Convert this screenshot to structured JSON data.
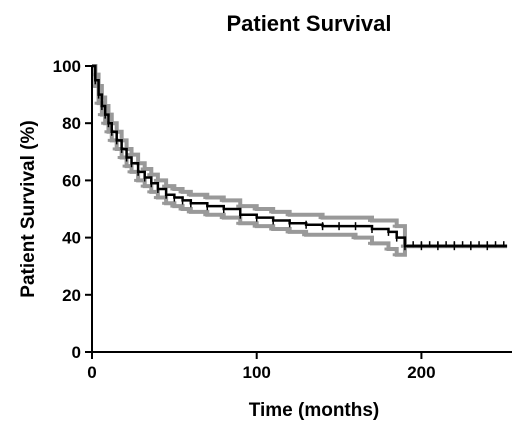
{
  "chart_data": {
    "type": "line",
    "title": "Patient Survival",
    "xlabel": "Time (months)",
    "ylabel": "Patient Survival (%)",
    "xlim": [
      0,
      255
    ],
    "ylim": [
      0,
      100
    ],
    "x_ticks": [
      0,
      100,
      200
    ],
    "y_ticks": [
      0,
      20,
      40,
      60,
      80,
      100
    ],
    "x_tick_labels": [
      "0",
      "100",
      "200"
    ],
    "y_tick_labels": [
      "0",
      "20",
      "40",
      "60",
      "80",
      "100"
    ],
    "grid": false,
    "legend": "none",
    "colors": {
      "curve": "#000000",
      "ci": "#999999"
    },
    "series": [
      {
        "style": "step",
        "x": [
          0,
          2,
          4,
          6,
          8,
          10,
          12,
          15,
          18,
          21,
          24,
          28,
          32,
          36,
          40,
          45,
          50,
          55,
          60,
          70,
          80,
          90,
          100,
          110,
          120,
          130,
          140,
          150,
          160,
          170,
          180,
          185,
          190,
          200,
          210,
          220,
          230,
          240,
          252
        ],
        "y": [
          100,
          95,
          90,
          86,
          83,
          80,
          77,
          74,
          71,
          68,
          66,
          63,
          61,
          59,
          57,
          55,
          54,
          53,
          52,
          51,
          50,
          48,
          47,
          46,
          45,
          44.5,
          44,
          44,
          44,
          43,
          42,
          40,
          37,
          37,
          37,
          37,
          37,
          37,
          37
        ],
        "ci_lower": [
          100,
          93,
          87,
          83,
          80,
          77,
          74,
          71,
          68,
          65,
          63,
          60,
          58,
          56,
          54,
          52,
          51,
          50,
          49,
          48,
          47,
          45,
          44,
          43,
          42,
          41,
          41,
          41,
          40,
          38,
          36,
          34,
          37,
          37,
          37,
          37,
          37,
          37,
          37
        ],
        "ci_upper": [
          100,
          97,
          93,
          89,
          86,
          83,
          80,
          77,
          74,
          71,
          69,
          66,
          64,
          62,
          60,
          58,
          57,
          56,
          55,
          54,
          53,
          51,
          50,
          49,
          48,
          48,
          47,
          47,
          47,
          46,
          46,
          44,
          37,
          37,
          37,
          37,
          37,
          37,
          37
        ],
        "censor_x": [
          195,
          200,
          205,
          210,
          215,
          220,
          225,
          230,
          235,
          240,
          245,
          250
        ]
      }
    ]
  }
}
